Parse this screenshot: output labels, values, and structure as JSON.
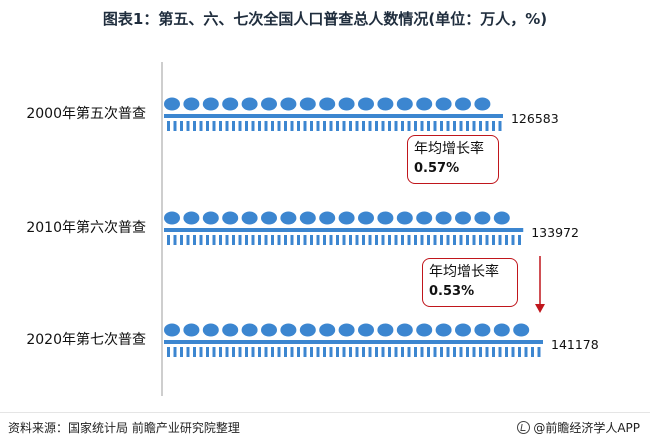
{
  "title": "图表1：第五、六、七次全国人口普查总人数情况(单位：万人，%)",
  "chart_data": {
    "type": "bar",
    "categories": [
      "2000年第五次普查",
      "2010年第六次普查",
      "2020年第七次普查"
    ],
    "values": [
      126583,
      133972,
      141178
    ],
    "value_labels": [
      "126583",
      "133972",
      "141178"
    ],
    "orientation": "horizontal",
    "bar_style": "pictogram-people",
    "colors": {
      "bar": "#3c86d0",
      "callout_border": "#c0161c",
      "arrow": "#c0161c",
      "axis": "#bdbdbd"
    },
    "annotations": [
      {
        "label": "年均增长率",
        "value": "0.57%"
      },
      {
        "label": "年均增长率",
        "value": "0.53%"
      }
    ]
  },
  "footer": {
    "source": "资料来源：国家统计局 前瞻产业研究院整理",
    "brand_icon": "brand-logo-icon",
    "brand": "@前瞻经济学人APP"
  }
}
